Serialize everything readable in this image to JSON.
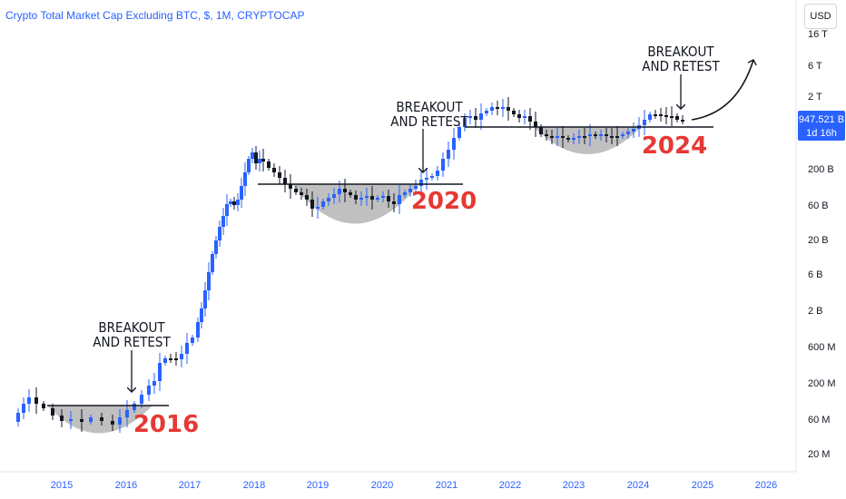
{
  "title": "Crypto Total Market Cap Excluding BTC, $, 1M, CRYPTOCAP",
  "currency_button": "USD",
  "price_tag": {
    "value": "947.521 B",
    "countdown": "1d 16h",
    "color": "#2962ff"
  },
  "colors": {
    "up": "#2962ff",
    "down": "#131722",
    "cup_fill": "#9e9e9e",
    "accent_red": "#e53935"
  },
  "chart_data": {
    "type": "candlestick",
    "title": "Crypto Total Market Cap Excluding BTC, $, 1M, CRYPTOCAP",
    "y_scale": "log",
    "y_ticks": [
      "16 T",
      "6 T",
      "2 T",
      "200 B",
      "60 B",
      "20 B",
      "6 B",
      "2 B",
      "600 M",
      "200 M",
      "60 M",
      "20 M"
    ],
    "x_ticks": [
      "2015",
      "2016",
      "2017",
      "2018",
      "2019",
      "2020",
      "2021",
      "2022",
      "2023",
      "2024",
      "2025",
      "2026"
    ],
    "approx_monthly_close_usd": [
      {
        "date": "2014-11",
        "close": 40000000.0
      },
      {
        "date": "2015-02",
        "close": 80000000.0
      },
      {
        "date": "2015-06",
        "close": 65000000.0
      },
      {
        "date": "2015-10",
        "close": 55000000.0
      },
      {
        "date": "2016-02",
        "close": 65000000.0
      },
      {
        "date": "2016-06",
        "close": 160000000.0
      },
      {
        "date": "2016-12",
        "close": 400000000.0
      },
      {
        "date": "2017-03",
        "close": 2000000000.0
      },
      {
        "date": "2017-06",
        "close": 30000000000.0
      },
      {
        "date": "2017-12",
        "close": 300000000000.0
      },
      {
        "date": "2018-01",
        "close": 500000000000.0
      },
      {
        "date": "2018-06",
        "close": 160000000000.0
      },
      {
        "date": "2018-12",
        "close": 60000000000.0
      },
      {
        "date": "2019-06",
        "close": 120000000000.0
      },
      {
        "date": "2019-12",
        "close": 60000000000.0
      },
      {
        "date": "2020-06",
        "close": 90000000000.0
      },
      {
        "date": "2020-12",
        "close": 380000000000.0
      },
      {
        "date": "2021-05",
        "close": 1100000000000.0
      },
      {
        "date": "2021-11",
        "close": 1700000000000.0
      },
      {
        "date": "2022-06",
        "close": 400000000000.0
      },
      {
        "date": "2022-12",
        "close": 340000000000.0
      },
      {
        "date": "2023-06",
        "close": 450000000000.0
      },
      {
        "date": "2023-12",
        "close": 800000000000.0
      },
      {
        "date": "2024-03",
        "close": 1200000000000.0
      },
      {
        "date": "2024-08",
        "close": 947521000000.0
      }
    ],
    "annotations": [
      {
        "text_lines": [
          "BREAKOUT",
          "AND RETEST"
        ],
        "near": "2016"
      },
      {
        "text_lines": [
          "BREAKOUT",
          "AND RETEST"
        ],
        "near": "2020"
      },
      {
        "text_lines": [
          "BREAKOUT",
          "AND RETEST"
        ],
        "near": "2024"
      }
    ],
    "pattern_labels": [
      "2016",
      "2020",
      "2024"
    ],
    "current_price": "947.521 B"
  }
}
